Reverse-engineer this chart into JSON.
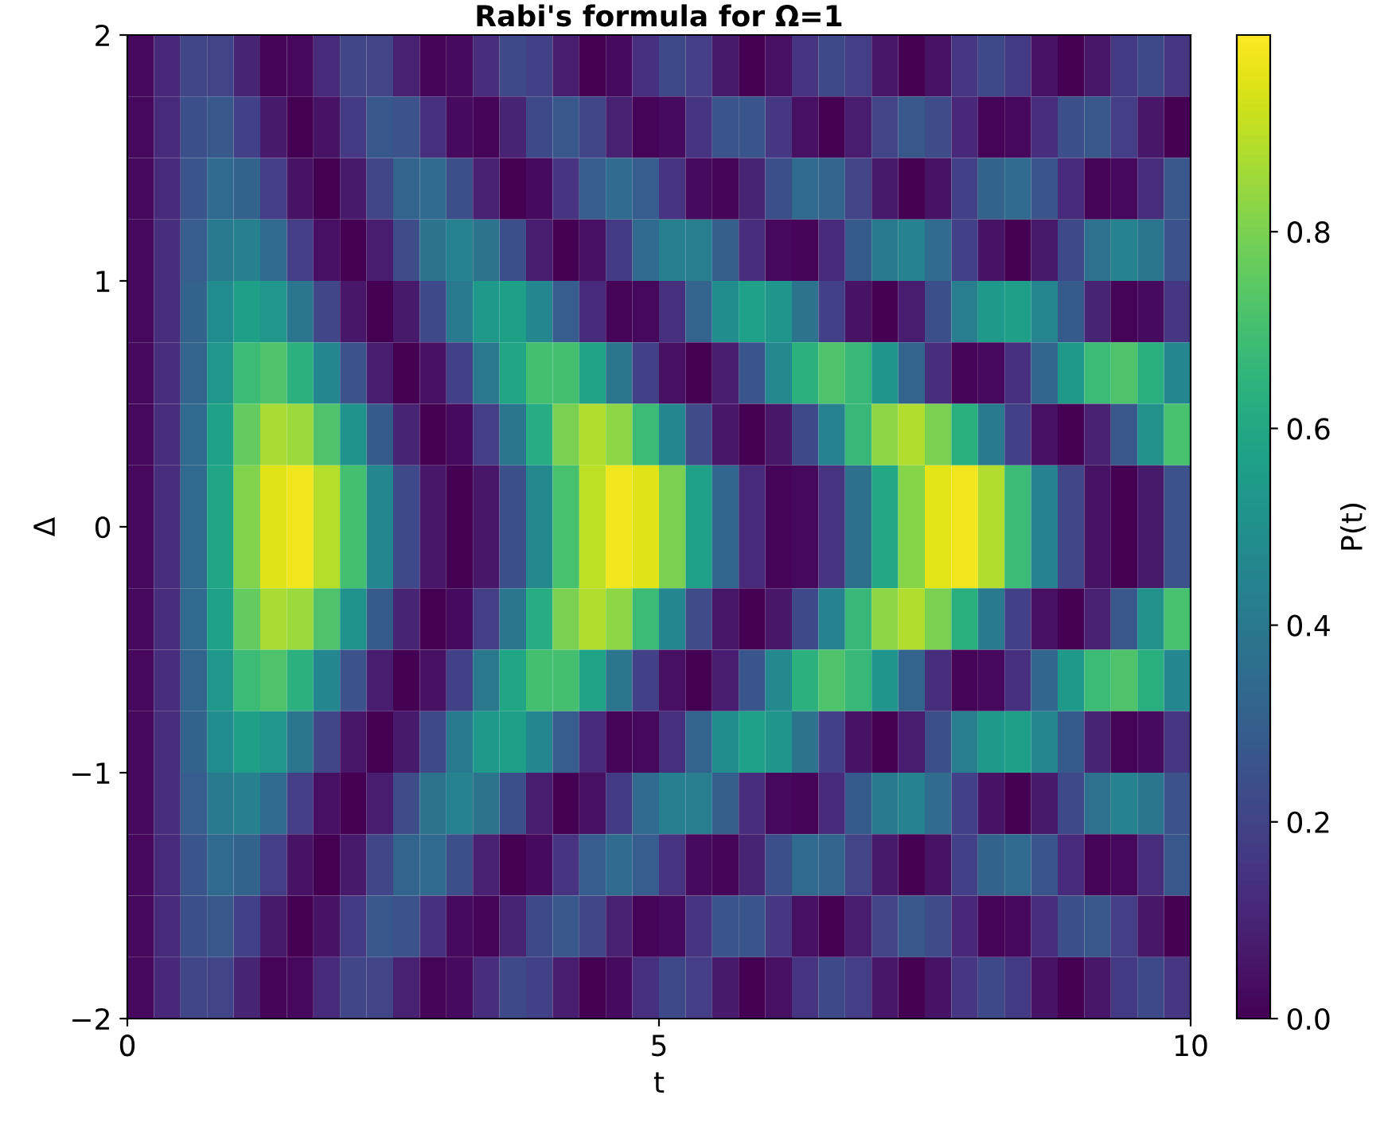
{
  "chart_data": {
    "type": "heatmap",
    "title": "Rabi's formula for Ω=1",
    "xlabel": "t",
    "ylabel": "Δ",
    "clabel": "P(t)",
    "xlim": [
      0,
      10
    ],
    "ylim": [
      -2,
      2
    ],
    "xticks": [
      0,
      5,
      10
    ],
    "yticks": [
      {
        "value": -2,
        "label": "−2"
      },
      {
        "value": -1,
        "label": "−1"
      },
      0,
      1,
      2
    ],
    "clim": [
      0,
      1
    ],
    "cticks": [
      {
        "value": 0,
        "label": "0.0"
      },
      {
        "value": 0.2,
        "label": "0.2"
      },
      {
        "value": 0.4,
        "label": "0.4"
      },
      {
        "value": 0.6,
        "label": "0.6"
      },
      {
        "value": 0.8,
        "label": "0.8"
      }
    ],
    "grid": false,
    "cells": [
      [
        0.02,
        0.11,
        0.21,
        0.2,
        0.1,
        0.01,
        0.02,
        0.12,
        0.21,
        0.2,
        0.09,
        0.01,
        0.03,
        0.13,
        0.22,
        0.19,
        0.08,
        0.0,
        0.03,
        0.14,
        0.22,
        0.18,
        0.07,
        0.0,
        0.04,
        0.15,
        0.22,
        0.18,
        0.06,
        0.0,
        0.05,
        0.16,
        0.22,
        0.17,
        0.05,
        0.0,
        0.06,
        0.17,
        0.22,
        0.16
      ],
      [
        0.02,
        0.12,
        0.24,
        0.27,
        0.19,
        0.07,
        0.0,
        0.05,
        0.17,
        0.27,
        0.25,
        0.14,
        0.03,
        0.01,
        0.1,
        0.22,
        0.27,
        0.21,
        0.09,
        0.01,
        0.03,
        0.15,
        0.26,
        0.26,
        0.16,
        0.04,
        0.0,
        0.08,
        0.2,
        0.27,
        0.23,
        0.11,
        0.01,
        0.02,
        0.13,
        0.24,
        0.27,
        0.18,
        0.06,
        0.0
      ],
      [
        0.02,
        0.12,
        0.26,
        0.34,
        0.31,
        0.18,
        0.05,
        0.0,
        0.07,
        0.21,
        0.32,
        0.34,
        0.24,
        0.09,
        0.0,
        0.03,
        0.15,
        0.29,
        0.35,
        0.29,
        0.15,
        0.03,
        0.01,
        0.1,
        0.24,
        0.34,
        0.32,
        0.2,
        0.07,
        0.0,
        0.05,
        0.19,
        0.31,
        0.34,
        0.26,
        0.12,
        0.01,
        0.02,
        0.13,
        0.27
      ],
      [
        0.02,
        0.13,
        0.29,
        0.41,
        0.43,
        0.34,
        0.18,
        0.04,
        0.0,
        0.08,
        0.23,
        0.38,
        0.44,
        0.38,
        0.24,
        0.08,
        0.0,
        0.04,
        0.17,
        0.34,
        0.43,
        0.42,
        0.3,
        0.13,
        0.02,
        0.01,
        0.12,
        0.28,
        0.41,
        0.44,
        0.35,
        0.19,
        0.05,
        0.0,
        0.07,
        0.22,
        0.37,
        0.44,
        0.39,
        0.25
      ],
      [
        0.02,
        0.13,
        0.31,
        0.48,
        0.56,
        0.53,
        0.39,
        0.21,
        0.06,
        0.0,
        0.07,
        0.22,
        0.41,
        0.54,
        0.56,
        0.46,
        0.29,
        0.12,
        0.01,
        0.02,
        0.14,
        0.32,
        0.49,
        0.57,
        0.52,
        0.38,
        0.19,
        0.05,
        0.0,
        0.08,
        0.24,
        0.42,
        0.54,
        0.56,
        0.45,
        0.28,
        0.1,
        0.01,
        0.03,
        0.16
      ],
      [
        0.02,
        0.13,
        0.32,
        0.53,
        0.68,
        0.72,
        0.64,
        0.46,
        0.25,
        0.08,
        0.0,
        0.04,
        0.19,
        0.4,
        0.59,
        0.7,
        0.7,
        0.58,
        0.39,
        0.19,
        0.04,
        0.0,
        0.08,
        0.26,
        0.47,
        0.64,
        0.72,
        0.67,
        0.52,
        0.32,
        0.13,
        0.01,
        0.02,
        0.14,
        0.33,
        0.54,
        0.68,
        0.72,
        0.63,
        0.46
      ],
      [
        0.02,
        0.13,
        0.34,
        0.57,
        0.76,
        0.87,
        0.85,
        0.72,
        0.51,
        0.28,
        0.1,
        0.0,
        0.03,
        0.18,
        0.39,
        0.62,
        0.8,
        0.88,
        0.83,
        0.68,
        0.46,
        0.23,
        0.06,
        0.0,
        0.06,
        0.22,
        0.44,
        0.67,
        0.83,
        0.88,
        0.8,
        0.63,
        0.41,
        0.19,
        0.04,
        0.0,
        0.09,
        0.27,
        0.5,
        0.71
      ],
      [
        0.02,
        0.13,
        0.34,
        0.59,
        0.81,
        0.95,
        0.98,
        0.89,
        0.7,
        0.46,
        0.22,
        0.06,
        0.0,
        0.06,
        0.24,
        0.47,
        0.71,
        0.9,
        0.98,
        0.95,
        0.8,
        0.57,
        0.33,
        0.12,
        0.01,
        0.02,
        0.15,
        0.36,
        0.6,
        0.82,
        0.96,
        0.98,
        0.88,
        0.68,
        0.44,
        0.21,
        0.05,
        0.0,
        0.07,
        0.25
      ],
      [
        0.02,
        0.13,
        0.34,
        0.59,
        0.81,
        0.95,
        0.98,
        0.89,
        0.7,
        0.46,
        0.22,
        0.06,
        0.0,
        0.06,
        0.24,
        0.47,
        0.71,
        0.9,
        0.98,
        0.95,
        0.8,
        0.57,
        0.33,
        0.12,
        0.01,
        0.02,
        0.15,
        0.36,
        0.6,
        0.82,
        0.96,
        0.98,
        0.88,
        0.68,
        0.44,
        0.21,
        0.05,
        0.0,
        0.07,
        0.25
      ],
      [
        0.02,
        0.13,
        0.34,
        0.57,
        0.76,
        0.87,
        0.85,
        0.72,
        0.51,
        0.28,
        0.1,
        0.0,
        0.03,
        0.18,
        0.39,
        0.62,
        0.8,
        0.88,
        0.83,
        0.68,
        0.46,
        0.23,
        0.06,
        0.0,
        0.06,
        0.22,
        0.44,
        0.67,
        0.83,
        0.88,
        0.8,
        0.63,
        0.41,
        0.19,
        0.04,
        0.0,
        0.09,
        0.27,
        0.5,
        0.71
      ],
      [
        0.02,
        0.13,
        0.32,
        0.53,
        0.68,
        0.72,
        0.64,
        0.46,
        0.25,
        0.08,
        0.0,
        0.04,
        0.19,
        0.4,
        0.59,
        0.7,
        0.7,
        0.58,
        0.39,
        0.19,
        0.04,
        0.0,
        0.08,
        0.26,
        0.47,
        0.64,
        0.72,
        0.67,
        0.52,
        0.32,
        0.13,
        0.01,
        0.02,
        0.14,
        0.33,
        0.54,
        0.68,
        0.72,
        0.63,
        0.46
      ],
      [
        0.02,
        0.13,
        0.31,
        0.48,
        0.56,
        0.53,
        0.39,
        0.21,
        0.06,
        0.0,
        0.07,
        0.22,
        0.41,
        0.54,
        0.56,
        0.46,
        0.29,
        0.12,
        0.01,
        0.02,
        0.14,
        0.32,
        0.49,
        0.57,
        0.52,
        0.38,
        0.19,
        0.05,
        0.0,
        0.08,
        0.24,
        0.42,
        0.54,
        0.56,
        0.45,
        0.28,
        0.1,
        0.01,
        0.03,
        0.16
      ],
      [
        0.02,
        0.13,
        0.29,
        0.41,
        0.43,
        0.34,
        0.18,
        0.04,
        0.0,
        0.08,
        0.23,
        0.38,
        0.44,
        0.38,
        0.24,
        0.08,
        0.0,
        0.04,
        0.17,
        0.34,
        0.43,
        0.42,
        0.3,
        0.13,
        0.02,
        0.01,
        0.12,
        0.28,
        0.41,
        0.44,
        0.35,
        0.19,
        0.05,
        0.0,
        0.07,
        0.22,
        0.37,
        0.44,
        0.39,
        0.25
      ],
      [
        0.02,
        0.12,
        0.26,
        0.34,
        0.31,
        0.18,
        0.05,
        0.0,
        0.07,
        0.21,
        0.32,
        0.34,
        0.24,
        0.09,
        0.0,
        0.03,
        0.15,
        0.29,
        0.35,
        0.29,
        0.15,
        0.03,
        0.01,
        0.1,
        0.24,
        0.34,
        0.32,
        0.2,
        0.07,
        0.0,
        0.05,
        0.19,
        0.31,
        0.34,
        0.26,
        0.12,
        0.01,
        0.02,
        0.13,
        0.27
      ],
      [
        0.02,
        0.12,
        0.24,
        0.27,
        0.19,
        0.07,
        0.0,
        0.05,
        0.17,
        0.27,
        0.25,
        0.14,
        0.03,
        0.01,
        0.1,
        0.22,
        0.27,
        0.21,
        0.09,
        0.01,
        0.03,
        0.15,
        0.26,
        0.26,
        0.16,
        0.04,
        0.0,
        0.08,
        0.2,
        0.27,
        0.23,
        0.11,
        0.01,
        0.02,
        0.13,
        0.24,
        0.27,
        0.18,
        0.06,
        0.0
      ],
      [
        0.02,
        0.11,
        0.21,
        0.2,
        0.1,
        0.01,
        0.02,
        0.12,
        0.21,
        0.2,
        0.09,
        0.01,
        0.03,
        0.13,
        0.22,
        0.19,
        0.08,
        0.0,
        0.03,
        0.14,
        0.22,
        0.18,
        0.07,
        0.0,
        0.04,
        0.15,
        0.22,
        0.18,
        0.06,
        0.0,
        0.05,
        0.16,
        0.22,
        0.17,
        0.05,
        0.0,
        0.06,
        0.17,
        0.22,
        0.16
      ]
    ]
  }
}
